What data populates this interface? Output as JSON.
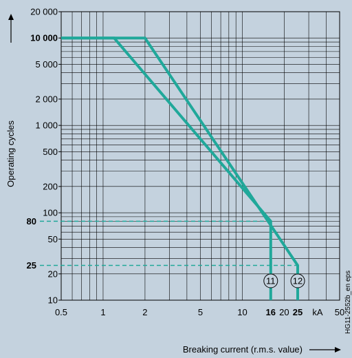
{
  "chart_data": {
    "type": "line",
    "xscale": "log",
    "yscale": "log",
    "xlim": [
      0.5,
      50
    ],
    "ylim": [
      10,
      20000
    ],
    "grid": true,
    "xlabel": "Breaking current (r.m.s. value)",
    "ylabel": "Operating cycles",
    "x_unit": "kA",
    "credit": "HG11-2552b_en eps",
    "x_ticks": [
      {
        "value": 0.5,
        "label": "0.5",
        "bold": false
      },
      {
        "value": 1,
        "label": "1",
        "bold": false
      },
      {
        "value": 2,
        "label": "2",
        "bold": false
      },
      {
        "value": 5,
        "label": "5",
        "bold": false
      },
      {
        "value": 10,
        "label": "10",
        "bold": false
      },
      {
        "value": 16,
        "label": "16",
        "bold": true
      },
      {
        "value": 20,
        "label": "20",
        "bold": false
      },
      {
        "value": 25,
        "label": "25",
        "bold": true
      },
      {
        "value": 50,
        "label": "50",
        "bold": false
      }
    ],
    "y_ticks": [
      {
        "value": 20000,
        "label": "20 000",
        "bold": false
      },
      {
        "value": 10000,
        "label": "10 000",
        "bold": true
      },
      {
        "value": 5000,
        "label": "5 000",
        "bold": false
      },
      {
        "value": 2000,
        "label": "2 000",
        "bold": false
      },
      {
        "value": 1000,
        "label": "1 000",
        "bold": false
      },
      {
        "value": 500,
        "label": "500",
        "bold": false
      },
      {
        "value": 200,
        "label": "200",
        "bold": false
      },
      {
        "value": 100,
        "label": "100",
        "bold": false
      },
      {
        "value": 80,
        "label": "80",
        "bold": true
      },
      {
        "value": 50,
        "label": "50",
        "bold": false
      },
      {
        "value": 25,
        "label": "25",
        "bold": true
      },
      {
        "value": 20,
        "label": "20",
        "bold": false
      },
      {
        "value": 10,
        "label": "10",
        "bold": false
      }
    ],
    "series": [
      {
        "name": "11",
        "color": "#20a89a",
        "x": [
          0.5,
          1.2,
          16,
          16
        ],
        "y": [
          10000,
          10000,
          80,
          10
        ]
      },
      {
        "name": "12",
        "color": "#20a89a",
        "x": [
          0.5,
          2,
          25,
          25
        ],
        "y": [
          10000,
          10000,
          25,
          10
        ]
      }
    ],
    "reference_lines": [
      {
        "y": 80,
        "x_end": 16,
        "style": "dashed"
      },
      {
        "y": 25,
        "x_end": 25,
        "style": "dashed"
      }
    ]
  }
}
